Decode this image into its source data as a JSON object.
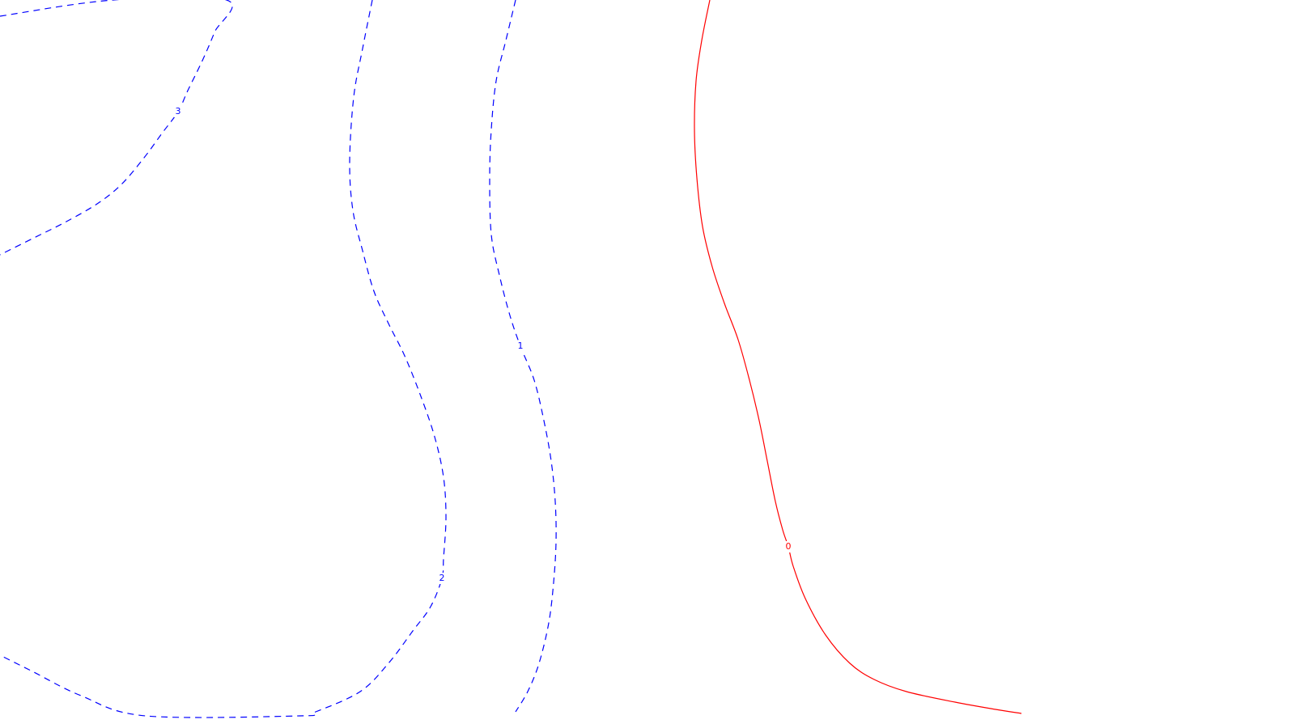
{
  "chart_data": {
    "type": "contour",
    "title": "",
    "xlabel": "",
    "ylabel": "",
    "grid": false,
    "legend": false,
    "colors": {
      "negative": "#0000ff",
      "zero": "#ff0000"
    },
    "levels": [
      {
        "label": "3",
        "style": "dashed",
        "color": "#0000ff",
        "points": [
          [
            0,
            20
          ],
          [
            140,
            0
          ],
          [
            280,
            0
          ],
          [
            265,
            40
          ],
          [
            250,
            75
          ],
          [
            232,
            112
          ],
          [
            220,
            138
          ],
          [
            200,
            165
          ],
          [
            178,
            195
          ],
          [
            150,
            228
          ],
          [
            120,
            252
          ],
          [
            80,
            275
          ],
          [
            40,
            295
          ],
          [
            0,
            315
          ]
        ]
      },
      {
        "label": "2",
        "style": "dashed",
        "color": "#0000ff",
        "points": [
          [
            460,
            0
          ],
          [
            448,
            60
          ],
          [
            437,
            120
          ],
          [
            432,
            200
          ],
          [
            436,
            260
          ],
          [
            448,
            310
          ],
          [
            462,
            360
          ],
          [
            480,
            400
          ],
          [
            500,
            440
          ],
          [
            520,
            490
          ],
          [
            537,
            540
          ],
          [
            548,
            590
          ],
          [
            551,
            640
          ],
          [
            548,
            690
          ],
          [
            546,
            715
          ],
          [
            532,
            750
          ],
          [
            510,
            780
          ],
          [
            480,
            820
          ],
          [
            445,
            855
          ],
          [
            390,
            880
          ],
          [
            370,
            885
          ],
          [
            180,
            885
          ],
          [
            100,
            860
          ],
          [
            40,
            830
          ],
          [
            0,
            810
          ]
        ]
      },
      {
        "label": "1",
        "style": "dashed",
        "color": "#0000ff",
        "points": [
          [
            637,
            0
          ],
          [
            625,
            50
          ],
          [
            613,
            100
          ],
          [
            607,
            160
          ],
          [
            605,
            220
          ],
          [
            607,
            290
          ],
          [
            617,
            340
          ],
          [
            630,
            390
          ],
          [
            643,
            428
          ],
          [
            660,
            470
          ],
          [
            672,
            520
          ],
          [
            681,
            570
          ],
          [
            686,
            620
          ],
          [
            687,
            670
          ],
          [
            684,
            720
          ],
          [
            678,
            770
          ],
          [
            666,
            820
          ],
          [
            652,
            855
          ],
          [
            637,
            880
          ]
        ]
      },
      {
        "label": "0",
        "style": "solid",
        "color": "#ff0000",
        "points": [
          [
            877,
            0
          ],
          [
            867,
            50
          ],
          [
            860,
            100
          ],
          [
            858,
            160
          ],
          [
            861,
            220
          ],
          [
            868,
            280
          ],
          [
            880,
            330
          ],
          [
            895,
            375
          ],
          [
            912,
            420
          ],
          [
            926,
            470
          ],
          [
            938,
            520
          ],
          [
            948,
            570
          ],
          [
            958,
            620
          ],
          [
            967,
            655
          ],
          [
            974,
            676
          ],
          [
            980,
            700
          ],
          [
            995,
            740
          ],
          [
            1020,
            785
          ],
          [
            1050,
            820
          ],
          [
            1080,
            840
          ],
          [
            1120,
            855
          ],
          [
            1180,
            868
          ],
          [
            1230,
            877
          ],
          [
            1262,
            882
          ]
        ]
      }
    ]
  },
  "label_positions": {
    "3": 220,
    "2": 546,
    "1": 643,
    "0": 974
  }
}
